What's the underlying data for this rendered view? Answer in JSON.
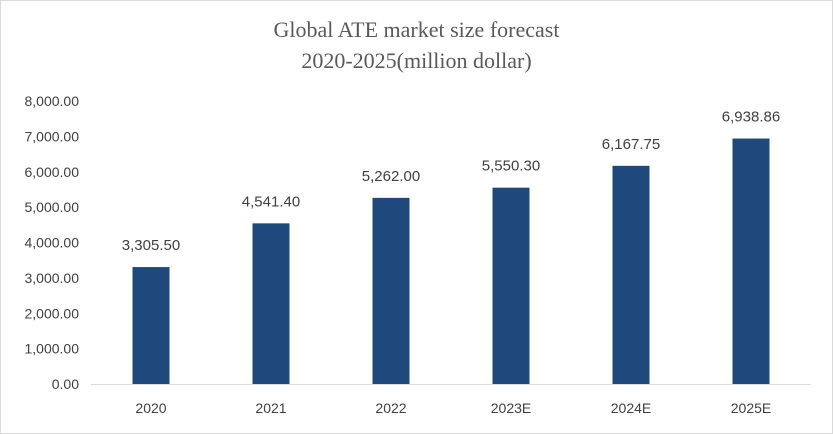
{
  "chart_data": {
    "type": "bar",
    "title": "Global ATE market size forecast",
    "subtitle": "2020-2025(million dollar)",
    "categories": [
      "2020",
      "2021",
      "2022",
      "2023E",
      "2024E",
      "2025E"
    ],
    "values": [
      3305.5,
      4541.4,
      5262.0,
      5550.3,
      6167.75,
      6938.86
    ],
    "data_labels": [
      "3,305.50",
      "4,541.40",
      "5,262.00",
      "5,550.30",
      "6,167.75",
      "6,938.86"
    ],
    "y_ticks": [
      "0.00",
      "1,000.00",
      "2,000.00",
      "3,000.00",
      "4,000.00",
      "5,000.00",
      "6,000.00",
      "7,000.00",
      "8,000.00"
    ],
    "ylim": [
      0,
      8000
    ],
    "xlabel": "",
    "ylabel": "",
    "grid": false,
    "legend": "none",
    "bar_color": "#1f497d"
  }
}
